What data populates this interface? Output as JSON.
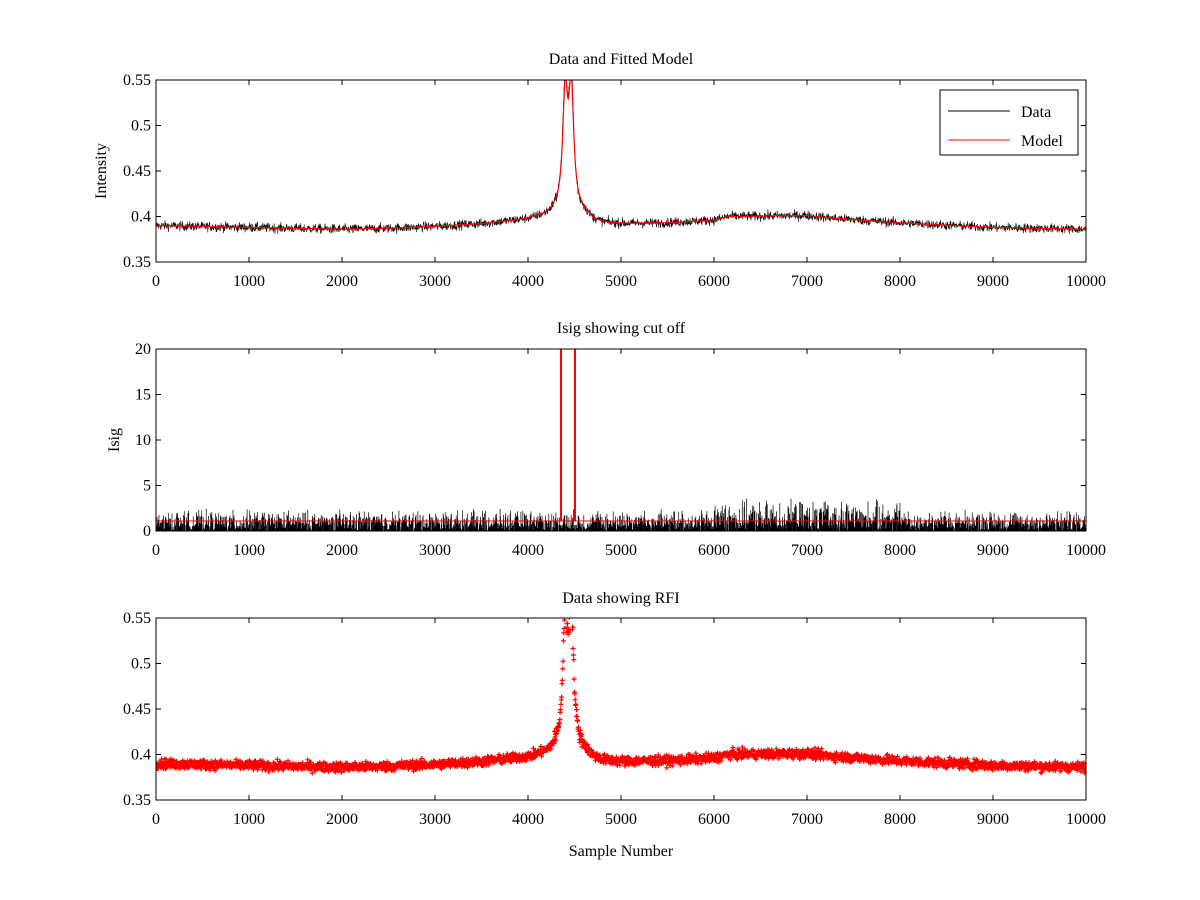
{
  "figure": {
    "background": "#ffffff"
  },
  "chart_data": [
    {
      "type": "line",
      "title": "Data and Fitted Model",
      "xlabel": "",
      "ylabel": "Intensity",
      "xlim": [
        0,
        10000
      ],
      "ylim": [
        0.35,
        0.55
      ],
      "xticks": [
        0,
        1000,
        2000,
        3000,
        4000,
        5000,
        6000,
        7000,
        8000,
        9000,
        10000
      ],
      "yticks": [
        0.35,
        0.4,
        0.45,
        0.5,
        0.55
      ],
      "ytick_labels": [
        "0.35",
        "0.4",
        "0.45",
        "0.5",
        "0.55"
      ],
      "legend": {
        "placement": "top-right",
        "entries": [
          "Data",
          "Model"
        ]
      },
      "series": [
        {
          "name": "Data",
          "color": "#000000",
          "style": "noisy-line",
          "noise_amplitude": 0.006,
          "baseline": {
            "x": [
              0,
              500,
              1000,
              1500,
              2000,
              2500,
              3000,
              3500,
              4000,
              4200,
              4300,
              4600,
              4700,
              4800,
              5000,
              5500,
              6000,
              6150,
              7000,
              7300,
              8000,
              9000,
              10000
            ],
            "y": [
              0.39,
              0.389,
              0.388,
              0.387,
              0.386,
              0.387,
              0.389,
              0.392,
              0.397,
              0.401,
              0.405,
              0.403,
              0.396,
              0.393,
              0.392,
              0.393,
              0.396,
              0.4,
              0.401,
              0.398,
              0.393,
              0.388,
              0.386
            ]
          },
          "peaks": [
            {
              "center": 4400,
              "height": 0.135,
              "width": 30
            },
            {
              "center": 4465,
              "height": 0.145,
              "width": 30
            }
          ]
        },
        {
          "name": "Model",
          "color": "#ff0000",
          "style": "smooth-line",
          "baseline": {
            "x": [
              0,
              500,
              1000,
              1500,
              2000,
              2500,
              3000,
              3500,
              4000,
              4200,
              4300,
              4600,
              4700,
              4800,
              5000,
              5500,
              6000,
              6150,
              7000,
              7300,
              8000,
              9000,
              10000
            ],
            "y": [
              0.39,
              0.389,
              0.388,
              0.387,
              0.386,
              0.387,
              0.389,
              0.392,
              0.397,
              0.401,
              0.405,
              0.403,
              0.396,
              0.393,
              0.392,
              0.393,
              0.396,
              0.4,
              0.401,
              0.398,
              0.393,
              0.388,
              0.386
            ]
          },
          "peaks": [
            {
              "center": 4400,
              "height": 0.125,
              "width": 32
            },
            {
              "center": 4465,
              "height": 0.13,
              "width": 32
            }
          ]
        }
      ]
    },
    {
      "type": "line",
      "title": "Isig showing cut off",
      "xlabel": "",
      "ylabel": "Isig",
      "xlim": [
        0,
        10000
      ],
      "ylim": [
        0,
        20
      ],
      "xticks": [
        0,
        1000,
        2000,
        3000,
        4000,
        5000,
        6000,
        7000,
        8000,
        9000,
        10000
      ],
      "yticks": [
        0,
        5,
        10,
        15,
        20
      ],
      "ytick_labels": [
        "0",
        "5",
        "10",
        "15",
        "20"
      ],
      "series": [
        {
          "name": "Isig",
          "color": "#000000",
          "style": "noisy-spikes",
          "typical_max": 2.5,
          "enhanced_region": [
            6000,
            8000
          ],
          "enhanced_max": 3.6
        },
        {
          "name": "Cut off",
          "color": "#ff0000",
          "style": "threshold",
          "value": 1.1,
          "exceedances": [
            4350,
            4500
          ]
        }
      ]
    },
    {
      "type": "scatter",
      "title": "Data showing RFI",
      "xlabel": "Sample Number",
      "ylabel": "",
      "xlim": [
        0,
        10000
      ],
      "ylim": [
        0.35,
        0.55
      ],
      "xticks": [
        0,
        1000,
        2000,
        3000,
        4000,
        5000,
        6000,
        7000,
        8000,
        9000,
        10000
      ],
      "yticks": [
        0.35,
        0.4,
        0.45,
        0.5,
        0.55
      ],
      "ytick_labels": [
        "0.35",
        "0.4",
        "0.45",
        "0.5",
        "0.55"
      ],
      "series": [
        {
          "name": "RFI",
          "color": "#ff0000",
          "marker": "plus",
          "noise_amplitude": 0.006,
          "baseline": {
            "x": [
              0,
              500,
              1000,
              1500,
              2000,
              2500,
              3000,
              3500,
              4000,
              4200,
              4300,
              4600,
              4700,
              4800,
              5000,
              5500,
              6000,
              6150,
              7000,
              7300,
              8000,
              9000,
              10000
            ],
            "y": [
              0.39,
              0.389,
              0.388,
              0.387,
              0.386,
              0.387,
              0.389,
              0.392,
              0.397,
              0.401,
              0.405,
              0.403,
              0.396,
              0.393,
              0.392,
              0.393,
              0.396,
              0.4,
              0.401,
              0.398,
              0.393,
              0.388,
              0.386
            ]
          },
          "peaks": [
            {
              "center": 4400,
              "height": 0.135,
              "width": 30
            },
            {
              "center": 4465,
              "height": 0.145,
              "width": 30
            }
          ]
        }
      ]
    }
  ]
}
